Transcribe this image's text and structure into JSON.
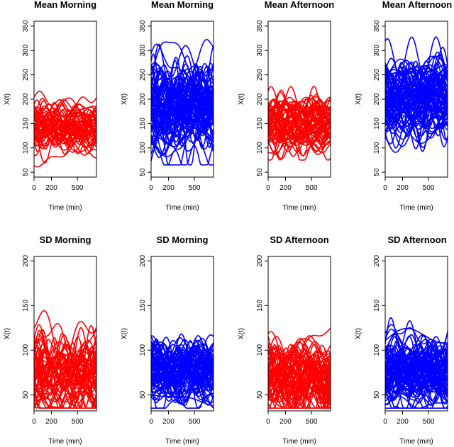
{
  "chart_data": [
    {
      "type": "line",
      "title": "Mean Morning",
      "xlabel": "Time (min)",
      "ylabel": "X(t)",
      "xlim": [
        0,
        720
      ],
      "ylim": [
        40,
        360
      ],
      "xticks": [
        0,
        200,
        500
      ],
      "xtick_labels": [
        "0",
        "200",
        "500"
      ],
      "yticks": [
        50,
        100,
        150,
        200,
        250,
        300,
        350
      ],
      "ytick_labels": [
        "50",
        "100",
        "150",
        "200",
        "250",
        "300",
        "350"
      ],
      "color": "#ff0000",
      "curve_summary": {
        "count": 55,
        "center": 145,
        "spread": 28,
        "min": 55,
        "max": 250
      }
    },
    {
      "type": "line",
      "title": "Mean Morning",
      "xlabel": "Time (min)",
      "ylabel": "X(t)",
      "xlim": [
        0,
        720
      ],
      "ylim": [
        40,
        360
      ],
      "xticks": [
        0,
        200,
        500
      ],
      "xtick_labels": [
        "0",
        "200",
        "500"
      ],
      "yticks": [
        50,
        100,
        150,
        200,
        250,
        300,
        350
      ],
      "ytick_labels": [
        "50",
        "100",
        "150",
        "200",
        "250",
        "300",
        "350"
      ],
      "color": "#0000ff",
      "curve_summary": {
        "count": 80,
        "center": 190,
        "spread": 48,
        "min": 65,
        "max": 360
      }
    },
    {
      "type": "line",
      "title": "Mean Afternoon",
      "xlabel": "Time (min)",
      "ylabel": "X(t)",
      "xlim": [
        0,
        720
      ],
      "ylim": [
        40,
        360
      ],
      "xticks": [
        0,
        200,
        500
      ],
      "xtick_labels": [
        "0",
        "200",
        "500"
      ],
      "yticks": [
        50,
        100,
        150,
        200,
        250,
        300,
        350
      ],
      "ytick_labels": [
        "50",
        "100",
        "150",
        "200",
        "250",
        "300",
        "350"
      ],
      "color": "#ff0000",
      "curve_summary": {
        "count": 60,
        "center": 150,
        "spread": 30,
        "min": 75,
        "max": 290
      }
    },
    {
      "type": "line",
      "title": "Mean Afternoon",
      "xlabel": "Time (min)",
      "ylabel": "X(t)",
      "xlim": [
        0,
        720
      ],
      "ylim": [
        40,
        360
      ],
      "xticks": [
        0,
        200,
        500
      ],
      "xtick_labels": [
        "0",
        "200",
        "500"
      ],
      "yticks": [
        50,
        100,
        150,
        200,
        250,
        300,
        350
      ],
      "ytick_labels": [
        "50",
        "100",
        "150",
        "200",
        "250",
        "300",
        "350"
      ],
      "color": "#0000ff",
      "curve_summary": {
        "count": 80,
        "center": 200,
        "spread": 45,
        "min": 65,
        "max": 360
      }
    },
    {
      "type": "line",
      "title": "SD Morning",
      "xlabel": "Time (min)",
      "ylabel": "X(t)",
      "xlim": [
        0,
        720
      ],
      "ylim": [
        32,
        205
      ],
      "xticks": [
        0,
        200,
        500
      ],
      "xtick_labels": [
        "0",
        "200",
        "500"
      ],
      "yticks": [
        50,
        100,
        150,
        200
      ],
      "ytick_labels": [
        "50",
        "100",
        "150",
        "200"
      ],
      "color": "#ff0000",
      "curve_summary": {
        "count": 55,
        "center": 70,
        "spread": 25,
        "min": 35,
        "max": 170
      }
    },
    {
      "type": "line",
      "title": "SD Morning",
      "xlabel": "Time (min)",
      "ylabel": "X(t)",
      "xlim": [
        0,
        720
      ],
      "ylim": [
        32,
        205
      ],
      "xticks": [
        0,
        200,
        500
      ],
      "xtick_labels": [
        "0",
        "200",
        "500"
      ],
      "yticks": [
        50,
        100,
        150,
        200
      ],
      "ytick_labels": [
        "50",
        "100",
        "150",
        "200"
      ],
      "color": "#0000ff",
      "curve_summary": {
        "count": 80,
        "center": 75,
        "spread": 20,
        "min": 35,
        "max": 142
      }
    },
    {
      "type": "line",
      "title": "SD Afternoon",
      "xlabel": "Time (min)",
      "ylabel": "X(t)",
      "xlim": [
        0,
        720
      ],
      "ylim": [
        32,
        205
      ],
      "xticks": [
        0,
        200,
        500
      ],
      "xtick_labels": [
        "0",
        "200",
        "500"
      ],
      "yticks": [
        50,
        100,
        150,
        200
      ],
      "ytick_labels": [
        "50",
        "100",
        "150",
        "200"
      ],
      "color": "#ff0000",
      "curve_summary": {
        "count": 60,
        "center": 70,
        "spread": 22,
        "min": 35,
        "max": 140
      }
    },
    {
      "type": "line",
      "title": "SD Afternoon",
      "xlabel": "Time (min)",
      "ylabel": "X(t)",
      "xlim": [
        0,
        720
      ],
      "ylim": [
        32,
        205
      ],
      "xticks": [
        0,
        200,
        500
      ],
      "xtick_labels": [
        "0",
        "200",
        "500"
      ],
      "yticks": [
        50,
        100,
        150,
        200
      ],
      "ytick_labels": [
        "50",
        "100",
        "150",
        "200"
      ],
      "color": "#0000ff",
      "curve_summary": {
        "count": 80,
        "center": 78,
        "spread": 20,
        "min": 35,
        "max": 153
      }
    }
  ]
}
